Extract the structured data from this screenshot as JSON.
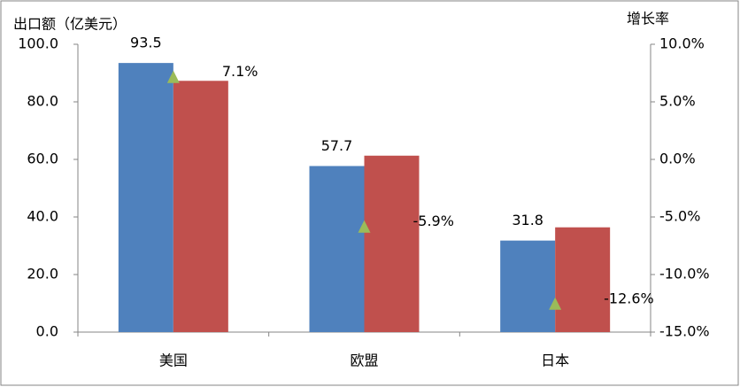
{
  "chart_data": {
    "type": "bar",
    "y_label": "出口额（亿美元）",
    "y2_label": "增长率",
    "categories": [
      "美国",
      "欧盟",
      "日本"
    ],
    "series": [
      {
        "color": "#4f81bd",
        "values": [
          93.5,
          57.7,
          31.8
        ],
        "show_labels": true
      },
      {
        "color": "#c0504d",
        "values": [
          87.3,
          61.3,
          36.4
        ]
      },
      {
        "type": "scatter",
        "marker": "triangle",
        "axis": "y2",
        "color": "#9bbb59",
        "values": [
          7.1,
          -5.9,
          -12.6
        ],
        "value_labels": [
          "7.1%",
          "-5.9%",
          "-12.6%"
        ]
      }
    ],
    "ylim": [
      0,
      100
    ],
    "yticks": [
      {
        "value": 0,
        "label": "0.0"
      },
      {
        "value": 20,
        "label": "20.0"
      },
      {
        "value": 40,
        "label": "40.0"
      },
      {
        "value": 60,
        "label": "60.0"
      },
      {
        "value": 80,
        "label": "80.0"
      },
      {
        "value": 100,
        "label": "100.0"
      }
    ],
    "y2lim": [
      -15,
      10
    ],
    "y2ticks": [
      {
        "value": -15,
        "label": "-15.0%"
      },
      {
        "value": -10,
        "label": "-10.0%"
      },
      {
        "value": -5,
        "label": "-5.0%"
      },
      {
        "value": 0,
        "label": "0.0%"
      },
      {
        "value": 5,
        "label": "5.0%"
      },
      {
        "value": 10,
        "label": "10.0%"
      }
    ],
    "grid": false
  }
}
